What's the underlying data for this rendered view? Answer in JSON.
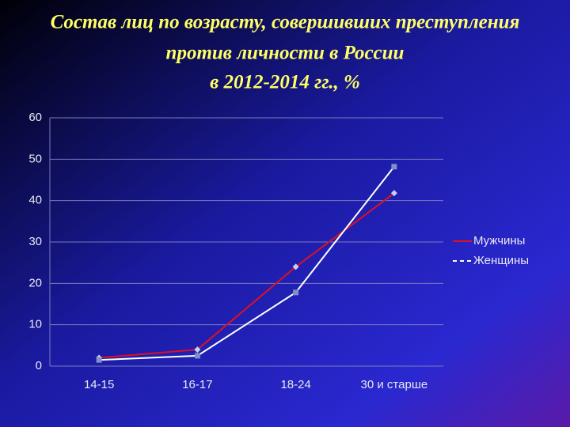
{
  "chart_data": {
    "type": "line",
    "title": [
      "Состав лиц по возрасту, совершивших преступления",
      "против личности в России",
      "в 2012-2014 гг., %"
    ],
    "categories": [
      "14-15",
      "16-17",
      "18-24",
      "30 и старше"
    ],
    "series": [
      {
        "name": "Мужчины",
        "color": "#e01020",
        "values": [
          2,
          4,
          24,
          41.8
        ]
      },
      {
        "name": "Женщины",
        "color": "#ffffff",
        "values": [
          1.5,
          2.5,
          17.8,
          48.2
        ]
      }
    ],
    "ylim": [
      0,
      60
    ],
    "yticks": [
      0,
      10,
      20,
      30,
      40,
      50,
      60
    ],
    "grid": true,
    "legend": "right"
  }
}
